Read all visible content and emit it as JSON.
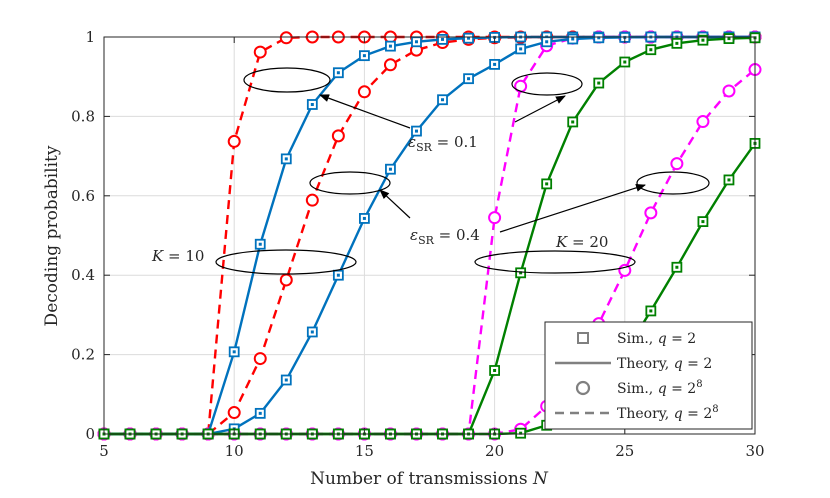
{
  "chart_data": {
    "type": "line",
    "title": "",
    "xlabel": "Number of transmissions N",
    "ylabel": "Decoding probability",
    "xlim": [
      5,
      30
    ],
    "ylim": [
      0,
      1
    ],
    "xticks": [
      5,
      10,
      15,
      20,
      25,
      30
    ],
    "yticks": [
      0,
      0.2,
      0.4,
      0.6,
      0.8,
      1
    ],
    "ytick_labels": [
      "0",
      "0.2",
      "0.4",
      "0.6",
      "0.8",
      "1"
    ],
    "grid": true,
    "legend_position": "bottom-right",
    "x": [
      5,
      6,
      7,
      8,
      9,
      10,
      11,
      12,
      13,
      14,
      15,
      16,
      17,
      18,
      19,
      20,
      21,
      22,
      23,
      24,
      25,
      26,
      27,
      28,
      29,
      30
    ],
    "series": [
      {
        "name": "K=10, q=2^8, eps=0.1",
        "color": "#ff0000",
        "marker": "circle",
        "dash": true,
        "values": [
          0,
          0,
          0,
          0,
          0,
          0.737,
          0.962,
          0.998,
          1,
          1,
          1,
          1,
          1,
          1,
          1,
          1,
          1,
          1,
          1,
          1,
          1,
          1,
          1,
          1,
          1,
          1
        ]
      },
      {
        "name": "K=10, q=2^8, eps=0.4",
        "color": "#ff0000",
        "marker": "circle",
        "dash": true,
        "values": [
          0,
          0,
          0,
          0,
          0,
          0.054,
          0.19,
          0.388,
          0.589,
          0.751,
          0.862,
          0.93,
          0.967,
          0.986,
          0.994,
          0.998,
          0.999,
          1,
          1,
          1,
          1,
          1,
          1,
          1,
          1,
          1
        ]
      },
      {
        "name": "K=10, q=2, eps=0.1",
        "color": "#0072bd",
        "marker": "square",
        "dash": false,
        "values": [
          0,
          0,
          0,
          0,
          0,
          0.207,
          0.478,
          0.693,
          0.83,
          0.91,
          0.953,
          0.977,
          0.988,
          0.994,
          0.997,
          0.999,
          1,
          1,
          1,
          1,
          1,
          1,
          1,
          1,
          1,
          1
        ]
      },
      {
        "name": "K=10, q=2, eps=0.4",
        "color": "#0072bd",
        "marker": "square",
        "dash": false,
        "values": [
          0,
          0,
          0,
          0,
          0,
          0.013,
          0.052,
          0.136,
          0.257,
          0.4,
          0.543,
          0.667,
          0.763,
          0.842,
          0.895,
          0.931,
          0.97,
          0.988,
          0.995,
          0.998,
          0.999,
          1,
          1,
          1,
          1,
          1
        ]
      },
      {
        "name": "K=20, q=2^8, eps=0.1",
        "color": "#ff00ff",
        "marker": "circle",
        "dash": true,
        "values": [
          0,
          0,
          0,
          0,
          0,
          0,
          0,
          0,
          0,
          0,
          0,
          0,
          0,
          0,
          0,
          0.545,
          0.876,
          0.978,
          0.997,
          1,
          1,
          1,
          1,
          1,
          1,
          1
        ]
      },
      {
        "name": "K=20, q=2^8, eps=0.4",
        "color": "#ff00ff",
        "marker": "circle",
        "dash": true,
        "values": [
          0,
          0,
          0,
          0,
          0,
          0,
          0,
          0,
          0,
          0,
          0,
          0,
          0,
          0,
          0,
          0,
          0.012,
          0.07,
          0.159,
          0.278,
          0.412,
          0.557,
          0.681,
          0.787,
          0.864,
          0.918
        ]
      },
      {
        "name": "K=20, q=2, eps=0.1",
        "color": "#008000",
        "marker": "square",
        "dash": false,
        "values": [
          0,
          0,
          0,
          0,
          0,
          0,
          0,
          0,
          0,
          0,
          0,
          0,
          0,
          0,
          0,
          0.16,
          0.406,
          0.63,
          0.786,
          0.884,
          0.937,
          0.968,
          0.984,
          0.992,
          0.996,
          0.998
        ]
      },
      {
        "name": "K=20, q=2, eps=0.4",
        "color": "#008000",
        "marker": "square",
        "dash": false,
        "values": [
          0,
          0,
          0,
          0,
          0,
          0,
          0,
          0,
          0,
          0,
          0,
          0,
          0,
          0,
          0,
          0,
          0.002,
          0.022,
          0.06,
          0.125,
          0.205,
          0.31,
          0.42,
          0.535,
          0.64,
          0.732
        ]
      }
    ],
    "annotations": {
      "eps01": {
        "main": "ε",
        "sub": "SR",
        "rest": " = 0.1"
      },
      "eps04": {
        "main": "ε",
        "sub": "SR",
        "rest": " = 0.4"
      },
      "k10": "K = 10",
      "k20": "K = 20"
    },
    "legend": [
      {
        "label": "Sim., q = 2",
        "kind": "square-marker"
      },
      {
        "label": "Theory, q = 2",
        "kind": "solid-line"
      },
      {
        "label": "Sim., q = 2",
        "sup": "8",
        "kind": "circle-marker"
      },
      {
        "label": "Theory, q = 2",
        "sup": "8",
        "kind": "dashed-line"
      }
    ],
    "legend_color": "#808080"
  }
}
